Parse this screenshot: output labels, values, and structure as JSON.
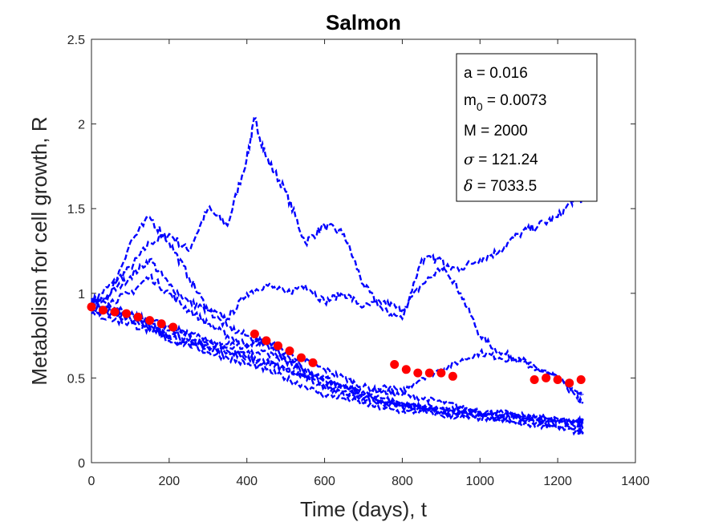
{
  "chart_data": {
    "type": "line",
    "title": "Salmon",
    "xlabel": "Time (days), t",
    "ylabel": "Metabolism for cell growth, R",
    "xlim": [
      0,
      1400
    ],
    "ylim": [
      0,
      2.5
    ],
    "xticks": [
      "0",
      "200",
      "400",
      "600",
      "800",
      "1000",
      "1200",
      "1400"
    ],
    "yticks": [
      "0",
      "0.5",
      "1",
      "1.5",
      "2",
      "2.5"
    ],
    "grid": false,
    "annotation": {
      "lines": [
        {
          "label": "a",
          "value": "0.016"
        },
        {
          "label": "m",
          "sub": "0",
          "value": "0.0073"
        },
        {
          "label": "M",
          "value": "2000"
        },
        {
          "label": "σ",
          "value": "121.24"
        },
        {
          "label": "δ",
          "value": "7033.5"
        }
      ]
    },
    "series": [
      {
        "style": "dashed",
        "color": "#0000ff",
        "x": [
          0,
          50,
          100,
          150,
          200,
          250,
          300,
          350,
          400,
          420,
          450,
          500,
          550,
          600,
          650,
          700,
          750,
          800,
          850,
          900,
          950,
          1000,
          1050,
          1100,
          1150,
          1200,
          1250,
          1265
        ],
        "y": [
          0.95,
          1.05,
          1.15,
          1.3,
          1.35,
          1.25,
          1.5,
          1.4,
          1.8,
          2.03,
          1.8,
          1.6,
          1.3,
          1.4,
          1.35,
          1.05,
          0.9,
          0.85,
          1.2,
          1.2,
          1.0,
          0.75,
          0.65,
          0.62,
          0.55,
          0.5,
          0.38,
          0.35
        ]
      },
      {
        "style": "dashed",
        "color": "#0000ff",
        "x": [
          0,
          50,
          100,
          150,
          200,
          250,
          300,
          350,
          400,
          450,
          500,
          550,
          600,
          650,
          700,
          750,
          800,
          850,
          900,
          950,
          1000,
          1050,
          1100,
          1150,
          1200,
          1250,
          1265
        ],
        "y": [
          0.93,
          1.0,
          1.1,
          1.2,
          1.05,
          0.95,
          0.9,
          0.85,
          1.0,
          1.05,
          1.0,
          1.05,
          0.95,
          1.0,
          0.92,
          0.95,
          0.9,
          1.05,
          1.15,
          1.15,
          1.2,
          1.25,
          1.35,
          1.4,
          1.45,
          1.58,
          1.55
        ]
      },
      {
        "style": "dashed",
        "color": "#0000ff",
        "x": [
          0,
          50,
          100,
          150,
          200,
          250,
          300,
          350,
          400,
          450,
          500,
          550,
          600,
          650,
          700,
          750,
          800,
          850,
          900,
          950,
          1000,
          1050,
          1100,
          1150,
          1200,
          1250,
          1265
        ],
        "y": [
          0.92,
          1.0,
          1.3,
          1.45,
          1.3,
          1.1,
          0.9,
          0.8,
          0.75,
          0.7,
          0.6,
          0.55,
          0.5,
          0.45,
          0.4,
          0.45,
          0.42,
          0.5,
          0.55,
          0.6,
          0.65,
          0.62,
          0.6,
          0.55,
          0.5,
          0.42,
          0.4
        ]
      },
      {
        "style": "dashed",
        "color": "#0000ff",
        "x": [
          0,
          50,
          100,
          150,
          200,
          250,
          300,
          350,
          400,
          450,
          500,
          550,
          600,
          650,
          700,
          750,
          800,
          850,
          900,
          950,
          1000,
          1050,
          1100,
          1150,
          1200,
          1250,
          1265
        ],
        "y": [
          0.9,
          0.95,
          1.0,
          1.1,
          1.0,
          0.9,
          0.82,
          0.75,
          0.7,
          0.72,
          0.65,
          0.6,
          0.55,
          0.5,
          0.45,
          0.42,
          0.4,
          0.38,
          0.36,
          0.33,
          0.3,
          0.3,
          0.28,
          0.27,
          0.25,
          0.24,
          0.25
        ]
      },
      {
        "style": "dashed",
        "color": "#0000ff",
        "x": [
          0,
          50,
          100,
          150,
          200,
          250,
          300,
          350,
          400,
          450,
          500,
          550,
          600,
          650,
          700,
          750,
          800,
          850,
          900,
          950,
          1000,
          1050,
          1100,
          1150,
          1200,
          1250,
          1265
        ],
        "y": [
          0.9,
          0.88,
          0.85,
          0.8,
          0.75,
          0.72,
          0.68,
          0.65,
          0.62,
          0.6,
          0.55,
          0.5,
          0.45,
          0.42,
          0.38,
          0.35,
          0.33,
          0.32,
          0.3,
          0.28,
          0.27,
          0.26,
          0.25,
          0.24,
          0.22,
          0.2,
          0.19
        ]
      },
      {
        "style": "dashed",
        "color": "#0000ff",
        "x": [
          0,
          50,
          100,
          150,
          200,
          250,
          300,
          350,
          400,
          450,
          500,
          550,
          600,
          650,
          700,
          750,
          800,
          850,
          900,
          950,
          1000,
          1050,
          1100,
          1150,
          1200,
          1250,
          1265
        ],
        "y": [
          0.88,
          0.85,
          0.82,
          0.78,
          0.72,
          0.7,
          0.65,
          0.62,
          0.58,
          0.55,
          0.5,
          0.45,
          0.4,
          0.38,
          0.35,
          0.32,
          0.3,
          0.3,
          0.28,
          0.27,
          0.26,
          0.25,
          0.23,
          0.22,
          0.21,
          0.18,
          0.18
        ]
      },
      {
        "style": "dashed",
        "color": "#0000ff",
        "x": [
          0,
          50,
          100,
          150,
          200,
          250,
          300,
          350,
          400,
          450,
          500,
          550,
          600,
          650,
          700,
          750,
          800,
          850,
          900,
          950,
          1000,
          1050,
          1100,
          1150,
          1200,
          1250,
          1265
        ],
        "y": [
          0.92,
          0.9,
          0.88,
          0.82,
          0.78,
          0.75,
          0.7,
          0.68,
          0.65,
          0.65,
          0.6,
          0.52,
          0.45,
          0.4,
          0.38,
          0.36,
          0.35,
          0.32,
          0.3,
          0.3,
          0.28,
          0.27,
          0.27,
          0.26,
          0.25,
          0.24,
          0.23
        ]
      },
      {
        "style": "dashed",
        "color": "#0000ff",
        "x": [
          0,
          50,
          100,
          150,
          200,
          250,
          300,
          350,
          400,
          450,
          500,
          550,
          600,
          650,
          700,
          750,
          800,
          850,
          900,
          950,
          1000,
          1050,
          1100,
          1150,
          1200,
          1250,
          1265
        ],
        "y": [
          0.95,
          0.9,
          0.85,
          0.8,
          0.74,
          0.7,
          0.68,
          0.66,
          0.62,
          0.58,
          0.55,
          0.52,
          0.5,
          0.45,
          0.42,
          0.38,
          0.35,
          0.33,
          0.32,
          0.3,
          0.29,
          0.28,
          0.27,
          0.25,
          0.24,
          0.22,
          0.21
        ]
      },
      {
        "style": "dashed",
        "color": "#0000ff",
        "x": [
          0,
          50,
          100,
          150,
          200,
          250,
          300,
          350,
          400,
          450,
          500,
          550,
          600,
          650,
          700,
          750,
          800,
          850,
          900,
          950,
          1000,
          1050,
          1100,
          1150,
          1200,
          1250,
          1265
        ],
        "y": [
          0.97,
          0.92,
          0.87,
          0.84,
          0.8,
          0.76,
          0.72,
          0.7,
          0.68,
          0.72,
          0.62,
          0.55,
          0.48,
          0.44,
          0.4,
          0.36,
          0.34,
          0.34,
          0.32,
          0.31,
          0.3,
          0.29,
          0.28,
          0.27,
          0.26,
          0.25,
          0.25
        ]
      }
    ],
    "observed": {
      "style": "markers",
      "color": "#ff0000",
      "x": [
        0,
        30,
        60,
        90,
        120,
        150,
        180,
        210,
        420,
        450,
        480,
        510,
        540,
        570,
        780,
        810,
        840,
        870,
        900,
        930,
        1140,
        1170,
        1200,
        1230,
        1260
      ],
      "y": [
        0.92,
        0.9,
        0.89,
        0.88,
        0.86,
        0.84,
        0.82,
        0.8,
        0.76,
        0.72,
        0.69,
        0.66,
        0.62,
        0.59,
        0.58,
        0.55,
        0.53,
        0.53,
        0.53,
        0.51,
        0.49,
        0.5,
        0.49,
        0.47,
        0.49
      ]
    }
  }
}
